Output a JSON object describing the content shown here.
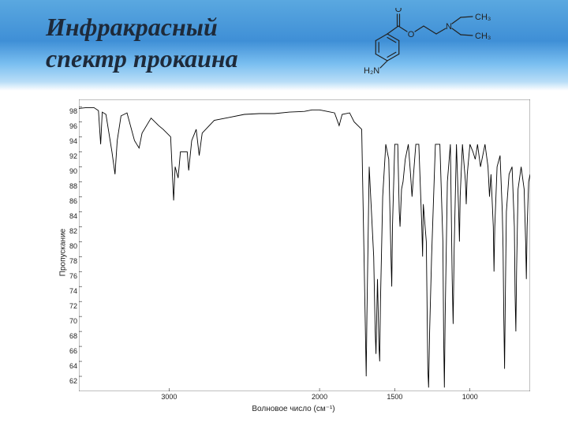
{
  "header": {
    "title_line1": "Инфракрасный",
    "title_line2": "спектр прокаина",
    "bg_gradient": [
      "#5aa8e0",
      "#3f8fd6",
      "#79bef0",
      "#b8ddf7",
      "#ffffff"
    ],
    "title_color": "#1e2a3a",
    "title_fontsize": 32,
    "title_fontstyle": "italic",
    "title_fontweight": 700
  },
  "molecule": {
    "labels": {
      "H2N": "H₂N",
      "O_dbl": "O",
      "O_single": "O",
      "N": "N",
      "CH3a": "CH₃",
      "CH3b": "CH₃"
    },
    "bond_color": "#222222",
    "text_color": "#222222",
    "bond_width": 1.2,
    "fontsize": 11
  },
  "spectrum": {
    "type": "line",
    "ylabel": "Пропускание",
    "xlabel": "Волновое число (см⁻¹)",
    "label_fontsize": 10,
    "tick_fontsize": 9,
    "xlim": [
      3600,
      600
    ],
    "ylim": [
      60,
      99
    ],
    "yticks": [
      62,
      64,
      66,
      68,
      70,
      72,
      74,
      76,
      78,
      80,
      82,
      84,
      86,
      88,
      90,
      92,
      94,
      96,
      98
    ],
    "xticks": [
      3000,
      2000,
      1500,
      1000
    ],
    "line_color": "#000000",
    "line_width": 0.9,
    "background_color": "#ffffff",
    "axis_color": "#000000",
    "data": [
      [
        3600,
        97.8
      ],
      [
        3550,
        97.9
      ],
      [
        3500,
        97.9
      ],
      [
        3470,
        97.5
      ],
      [
        3455,
        93.0
      ],
      [
        3445,
        97.3
      ],
      [
        3420,
        97.0
      ],
      [
        3380,
        92.0
      ],
      [
        3360,
        89.0
      ],
      [
        3345,
        93.5
      ],
      [
        3320,
        96.8
      ],
      [
        3280,
        97.2
      ],
      [
        3230,
        93.5
      ],
      [
        3200,
        92.5
      ],
      [
        3180,
        94.5
      ],
      [
        3120,
        96.5
      ],
      [
        3070,
        95.5
      ],
      [
        3040,
        95.0
      ],
      [
        2990,
        94.0
      ],
      [
        2970,
        85.5
      ],
      [
        2960,
        90.0
      ],
      [
        2940,
        88.5
      ],
      [
        2925,
        92.0
      ],
      [
        2880,
        92.0
      ],
      [
        2870,
        89.5
      ],
      [
        2850,
        93.5
      ],
      [
        2820,
        95.0
      ],
      [
        2800,
        91.5
      ],
      [
        2780,
        94.5
      ],
      [
        2700,
        96.2
      ],
      [
        2600,
        96.6
      ],
      [
        2500,
        97.0
      ],
      [
        2400,
        97.1
      ],
      [
        2300,
        97.1
      ],
      [
        2200,
        97.3
      ],
      [
        2100,
        97.4
      ],
      [
        2050,
        97.6
      ],
      [
        2000,
        97.6
      ],
      [
        1950,
        97.4
      ],
      [
        1900,
        97.2
      ],
      [
        1870,
        95.5
      ],
      [
        1850,
        97.0
      ],
      [
        1800,
        97.2
      ],
      [
        1770,
        96.0
      ],
      [
        1720,
        95.0
      ],
      [
        1695,
        68.0
      ],
      [
        1690,
        62.0
      ],
      [
        1685,
        70.0
      ],
      [
        1670,
        90.0
      ],
      [
        1640,
        78.0
      ],
      [
        1630,
        68.0
      ],
      [
        1625,
        65.0
      ],
      [
        1615,
        75.0
      ],
      [
        1605,
        66.0
      ],
      [
        1600,
        64.0
      ],
      [
        1595,
        72.0
      ],
      [
        1580,
        86.0
      ],
      [
        1560,
        93.0
      ],
      [
        1540,
        91.0
      ],
      [
        1525,
        78.0
      ],
      [
        1520,
        74.0
      ],
      [
        1515,
        82.0
      ],
      [
        1500,
        93.0
      ],
      [
        1480,
        93.0
      ],
      [
        1470,
        84.0
      ],
      [
        1465,
        82.0
      ],
      [
        1455,
        87.0
      ],
      [
        1445,
        88.0
      ],
      [
        1430,
        91.0
      ],
      [
        1410,
        93.0
      ],
      [
        1395,
        89.0
      ],
      [
        1385,
        86.0
      ],
      [
        1375,
        89.0
      ],
      [
        1360,
        93.0
      ],
      [
        1340,
        93.0
      ],
      [
        1320,
        82.0
      ],
      [
        1315,
        78.0
      ],
      [
        1310,
        85.0
      ],
      [
        1290,
        80.0
      ],
      [
        1280,
        63.0
      ],
      [
        1275,
        60.5
      ],
      [
        1268,
        68.0
      ],
      [
        1255,
        78.0
      ],
      [
        1230,
        93.0
      ],
      [
        1200,
        93.0
      ],
      [
        1180,
        80.0
      ],
      [
        1175,
        67.0
      ],
      [
        1170,
        60.5
      ],
      [
        1165,
        70.0
      ],
      [
        1150,
        88.0
      ],
      [
        1130,
        93.0
      ],
      [
        1118,
        75.0
      ],
      [
        1112,
        69.0
      ],
      [
        1105,
        79.0
      ],
      [
        1090,
        93.0
      ],
      [
        1075,
        84.0
      ],
      [
        1070,
        80.0
      ],
      [
        1065,
        86.0
      ],
      [
        1050,
        93.0
      ],
      [
        1030,
        88.0
      ],
      [
        1025,
        85.0
      ],
      [
        1018,
        89.0
      ],
      [
        1000,
        93.0
      ],
      [
        980,
        92.0
      ],
      [
        965,
        91.0
      ],
      [
        950,
        93.0
      ],
      [
        930,
        90.0
      ],
      [
        920,
        91.0
      ],
      [
        900,
        93.0
      ],
      [
        880,
        90.0
      ],
      [
        870,
        86.0
      ],
      [
        860,
        89.0
      ],
      [
        845,
        82.0
      ],
      [
        840,
        76.0
      ],
      [
        835,
        82.0
      ],
      [
        820,
        90.0
      ],
      [
        800,
        91.5
      ],
      [
        785,
        84.0
      ],
      [
        780,
        79.0
      ],
      [
        775,
        70.0
      ],
      [
        770,
        63.0
      ],
      [
        765,
        72.0
      ],
      [
        758,
        84.0
      ],
      [
        740,
        89.0
      ],
      [
        720,
        90.0
      ],
      [
        705,
        82.0
      ],
      [
        700,
        73.0
      ],
      [
        695,
        68.0
      ],
      [
        690,
        76.0
      ],
      [
        680,
        87.0
      ],
      [
        660,
        90.0
      ],
      [
        640,
        87.0
      ],
      [
        630,
        80.0
      ],
      [
        625,
        75.0
      ],
      [
        620,
        82.0
      ],
      [
        610,
        88.0
      ],
      [
        600,
        89.0
      ]
    ]
  }
}
